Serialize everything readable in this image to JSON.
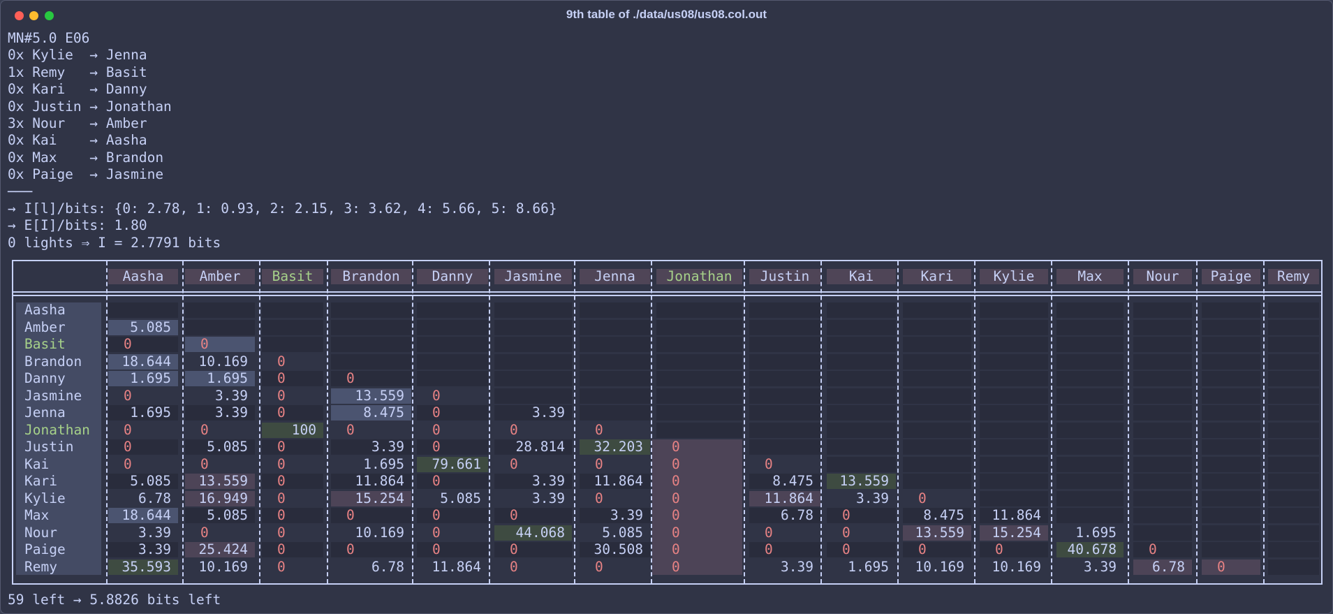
{
  "window": {
    "title": "9th table of ./data/us08/us08.col.out"
  },
  "header_lines": [
    "MN#5.0 E06",
    "0x Kylie  → Jenna",
    "1x Remy   → Basit",
    "0x Kari   → Danny",
    "0x Justin → Jonathan",
    "3x Nour   → Amber",
    "0x Kai    → Aasha",
    "0x Max    → Brandon",
    "0x Paige  → Jasmine",
    "───",
    "→ I[l]/bits: {0: 2.78, 1: 0.93, 2: 2.15, 3: 3.62, 4: 5.66, 5: 8.66}",
    "→ E[I]/bits: 1.80",
    "0 lights ⇒ I = 2.7791 bits"
  ],
  "table": {
    "columns": [
      "Aasha",
      "Amber",
      "Basit",
      "Brandon",
      "Danny",
      "Jasmine",
      "Jenna",
      "Jonathan",
      "Justin",
      "Kai",
      "Kari",
      "Kylie",
      "Max",
      "Nour",
      "Paige",
      "Remy"
    ],
    "rows": [
      {
        "name": "Aasha",
        "values": []
      },
      {
        "name": "Amber",
        "values": [
          "5.085"
        ]
      },
      {
        "name": "Basit",
        "values": [
          "0",
          "0"
        ]
      },
      {
        "name": "Brandon",
        "values": [
          "18.644",
          "10.169",
          "0"
        ]
      },
      {
        "name": "Danny",
        "values": [
          "1.695",
          "1.695",
          "0",
          "0"
        ]
      },
      {
        "name": "Jasmine",
        "values": [
          "0",
          "3.39",
          "0",
          "13.559",
          "0"
        ]
      },
      {
        "name": "Jenna",
        "values": [
          "1.695",
          "3.39",
          "0",
          "8.475",
          "0",
          "3.39"
        ]
      },
      {
        "name": "Jonathan",
        "values": [
          "0",
          "0",
          "100",
          "0",
          "0",
          "0",
          "0"
        ]
      },
      {
        "name": "Justin",
        "values": [
          "0",
          "5.085",
          "0",
          "3.39",
          "0",
          "28.814",
          "32.203",
          "0"
        ]
      },
      {
        "name": "Kai",
        "values": [
          "0",
          "0",
          "0",
          "1.695",
          "79.661",
          "0",
          "0",
          "0",
          "0"
        ]
      },
      {
        "name": "Kari",
        "values": [
          "5.085",
          "13.559",
          "0",
          "11.864",
          "0",
          "3.39",
          "11.864",
          "0",
          "8.475",
          "13.559"
        ]
      },
      {
        "name": "Kylie",
        "values": [
          "6.78",
          "16.949",
          "0",
          "15.254",
          "5.085",
          "3.39",
          "0",
          "0",
          "11.864",
          "3.39",
          "0"
        ]
      },
      {
        "name": "Max",
        "values": [
          "18.644",
          "5.085",
          "0",
          "0",
          "0",
          "0",
          "3.39",
          "0",
          "6.78",
          "0",
          "8.475",
          "11.864"
        ]
      },
      {
        "name": "Nour",
        "values": [
          "3.39",
          "0",
          "0",
          "10.169",
          "0",
          "44.068",
          "5.085",
          "0",
          "0",
          "0",
          "13.559",
          "15.254",
          "1.695"
        ]
      },
      {
        "name": "Paige",
        "values": [
          "3.39",
          "25.424",
          "0",
          "0",
          "0",
          "0",
          "30.508",
          "0",
          "0",
          "0",
          "0",
          "0",
          "40.678",
          "0"
        ]
      },
      {
        "name": "Remy",
        "values": [
          "35.593",
          "10.169",
          "0",
          "6.78",
          "11.864",
          "0",
          "0",
          "0",
          "3.39",
          "1.695",
          "10.169",
          "10.169",
          "3.39",
          "6.78",
          "0"
        ]
      }
    ],
    "highlighted_labels": [
      "Basit",
      "Jonathan"
    ],
    "green_cells": [
      [
        7,
        2
      ],
      [
        8,
        6
      ],
      [
        9,
        4
      ],
      [
        10,
        9
      ],
      [
        13,
        5
      ],
      [
        14,
        12
      ],
      [
        15,
        0
      ]
    ],
    "blue_cells": [
      [
        1,
        0
      ],
      [
        2,
        1
      ],
      [
        3,
        0
      ],
      [
        4,
        0
      ],
      [
        4,
        1
      ],
      [
        5,
        3
      ],
      [
        6,
        3
      ],
      [
        12,
        0
      ]
    ],
    "mauve_cells": [
      [
        10,
        1
      ],
      [
        11,
        1
      ],
      [
        11,
        3
      ],
      [
        11,
        8
      ],
      [
        13,
        10
      ],
      [
        13,
        11
      ],
      [
        14,
        1
      ],
      [
        15,
        13
      ],
      [
        15,
        14
      ]
    ],
    "mauve_columns": [
      7
    ],
    "colors": {
      "background": "#303446",
      "text": "#c6d0f5",
      "zero": "#e78284",
      "highlight_text": "#a6d189",
      "header_bg": "#4f4557",
      "stripe_bg": "#292c3c",
      "label_bg": "#444b64",
      "green_bg": "#3e4b41",
      "blue_bg": "#4b5470",
      "mauve_bg": "#4d4457"
    }
  },
  "footer": "59 left → 5.8826 bits left"
}
